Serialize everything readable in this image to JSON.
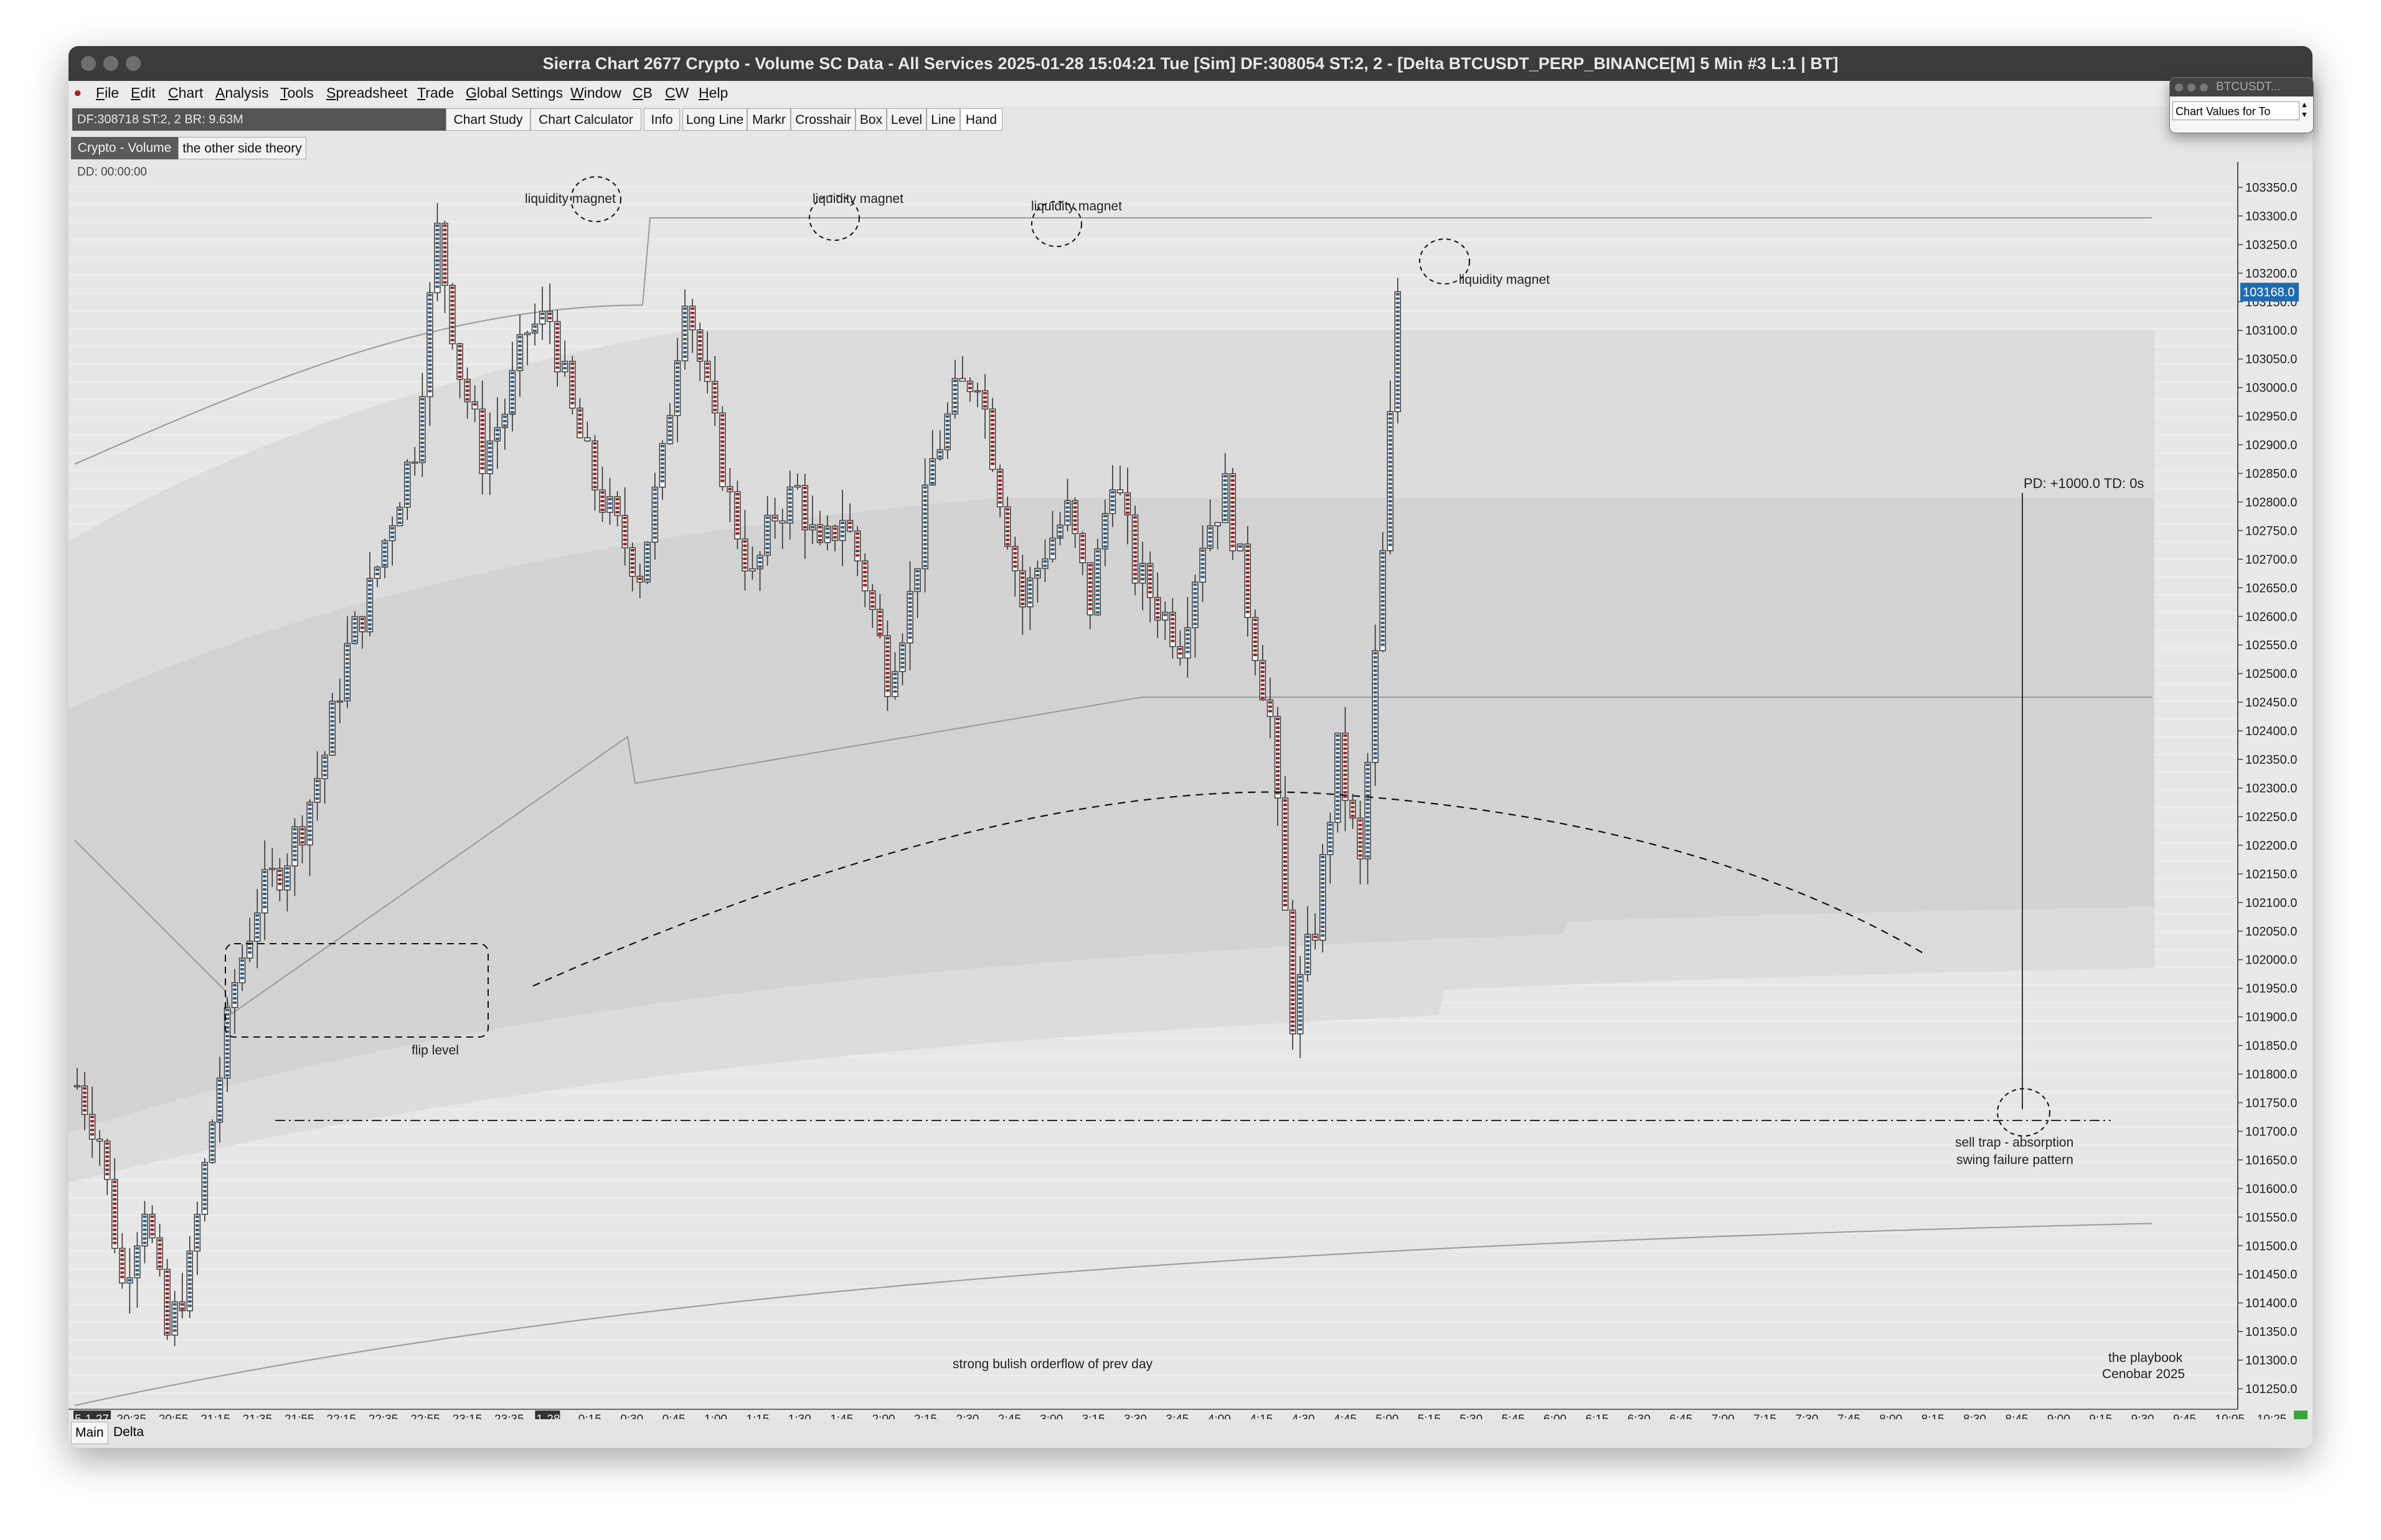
{
  "window": {
    "title": "Sierra Chart 2677 Crypto - Volume SC Data - All Services 2025-01-28  15:04:21 Tue [Sim] DF:308054  ST:2, 2 - [Delta BTCUSDT_PERP_BINANCE[M]  5 Min  #3 L:1 | BT]"
  },
  "menu": [
    "File",
    "Edit",
    "Chart",
    "Analysis",
    "Tools",
    "Spreadsheet",
    "Trade",
    "Global Settings",
    "Window",
    "CB",
    "CW",
    "Help"
  ],
  "toolbar": {
    "status": "DF:308718  ST:2, 2  BR: 9.63M",
    "buttons": [
      "Chart Study",
      "Chart Calculator",
      "Info",
      "Long Line",
      "Markr",
      "Crosshair",
      "Box",
      "Level",
      "Line",
      "Hand"
    ]
  },
  "chart_tabs": [
    "Crypto - Volume",
    "the other side theory"
  ],
  "floating_window": {
    "title": "BTCUSDT...",
    "label": "Chart Values for To"
  },
  "chart": {
    "dd_label": "DD:  00:00:00",
    "current_price": "103168.0",
    "pd_label": "PD: +1000.0  TD: 0s",
    "annotations": {
      "liquidity_magnet": "liquidity magnet",
      "flip_level": "flip level",
      "sell_trap_line1": "sell trap - absorption",
      "sell_trap_line2": "swing failure pattern",
      "orderflow": "strong bulish orderflow of prev day",
      "footer_line1": "the playbook",
      "footer_line2": "Cenobar 2025"
    }
  },
  "bottom_tabs": [
    "Main",
    "Delta"
  ],
  "chart_data": {
    "type": "candlestick",
    "symbol": "BTCUSDT_PERP_BINANCE",
    "timeframe": "5 Min",
    "ylim": [
      101225,
      103375
    ],
    "y_ticks": [
      103350,
      103300,
      103250,
      103200,
      103150,
      103100,
      103050,
      103000,
      102950,
      102900,
      102850,
      102800,
      102750,
      102700,
      102650,
      102600,
      102550,
      102500,
      102450,
      102400,
      102350,
      102300,
      102250,
      102200,
      102150,
      102100,
      102050,
      102000,
      101950,
      101900,
      101850,
      101800,
      101750,
      101700,
      101650,
      101600,
      101550,
      101500,
      101450,
      101400,
      101350,
      101300,
      101250
    ],
    "x_ticks": [
      "5-1-27",
      "20:35",
      "20:55",
      "21:15",
      "21:35",
      "21:55",
      "22:15",
      "22:35",
      "22:55",
      "23:15",
      "23:35",
      "1-28",
      "0:15",
      "0:30",
      "0:45",
      "1:00",
      "1:15",
      "1:30",
      "1:45",
      "2:00",
      "2:15",
      "2:30",
      "2:45",
      "3:00",
      "3:15",
      "3:30",
      "3:45",
      "4:00",
      "4:15",
      "4:30",
      "4:45",
      "5:00",
      "5:15",
      "5:30",
      "5:45",
      "6:00",
      "6:15",
      "6:30",
      "6:45",
      "7:00",
      "7:15",
      "7:30",
      "7:45",
      "8:00",
      "8:15",
      "8:30",
      "8:45",
      "9:00",
      "9:15",
      "9:30",
      "9:45",
      "10:05",
      "10:25"
    ],
    "anchors": [
      [
        0,
        101780
      ],
      [
        3,
        101690
      ],
      [
        6,
        101430
      ],
      [
        9,
        101580
      ],
      [
        12,
        101340
      ],
      [
        15,
        101460
      ],
      [
        18,
        101720
      ],
      [
        21,
        101960
      ],
      [
        24,
        102100
      ],
      [
        27,
        102160
      ],
      [
        30,
        102240
      ],
      [
        33,
        102360
      ],
      [
        36,
        102540
      ],
      [
        39,
        102640
      ],
      [
        42,
        102780
      ],
      [
        45,
        102900
      ],
      [
        48,
        103270
      ],
      [
        51,
        103030
      ],
      [
        54,
        102880
      ],
      [
        57,
        102960
      ],
      [
        60,
        103100
      ],
      [
        63,
        103120
      ],
      [
        66,
        102950
      ],
      [
        69,
        102830
      ],
      [
        72,
        102750
      ],
      [
        75,
        102680
      ],
      [
        78,
        102870
      ],
      [
        81,
        103180
      ],
      [
        84,
        102980
      ],
      [
        87,
        102800
      ],
      [
        90,
        102660
      ],
      [
        93,
        102780
      ],
      [
        96,
        102820
      ],
      [
        99,
        102700
      ],
      [
        102,
        102780
      ],
      [
        105,
        102660
      ],
      [
        108,
        102500
      ],
      [
        111,
        102630
      ],
      [
        114,
        102870
      ],
      [
        117,
        102980
      ],
      [
        120,
        103030
      ],
      [
        123,
        102820
      ],
      [
        126,
        102620
      ],
      [
        129,
        102720
      ],
      [
        132,
        102780
      ],
      [
        135,
        102620
      ],
      [
        138,
        102860
      ],
      [
        141,
        102680
      ],
      [
        144,
        102620
      ],
      [
        147,
        102560
      ],
      [
        150,
        102740
      ],
      [
        153,
        102820
      ],
      [
        156,
        102620
      ],
      [
        159,
        102420
      ],
      [
        162,
        101900
      ],
      [
        165,
        102060
      ],
      [
        168,
        102360
      ],
      [
        171,
        102160
      ],
      [
        174,
        102700
      ],
      [
        176,
        103170
      ]
    ]
  }
}
